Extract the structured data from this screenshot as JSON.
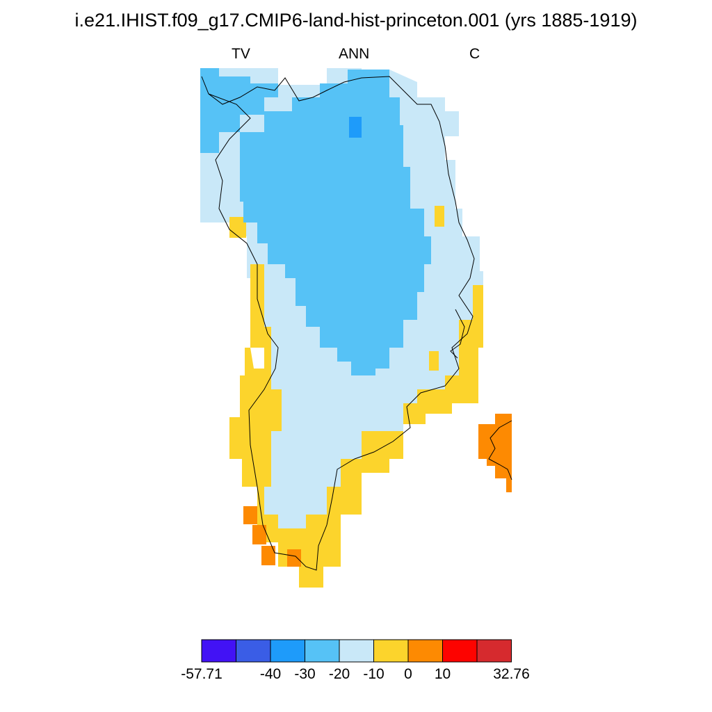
{
  "title": "i.e21.IHIST.f09_g17.CMIP6-land-hist-princeton.001 (yrs 1885-1919)",
  "subtitle": {
    "left": "TV",
    "center": "ANN",
    "right": "C"
  },
  "colorbar": {
    "colors": [
      "#4212f5",
      "#3a5de6",
      "#1e9bfa",
      "#56c2f6",
      "#c9e8f8",
      "#fcd42c",
      "#fd8a02",
      "#fd0300",
      "#d62a2e"
    ],
    "labels": [
      "-57.71",
      "-40",
      "-30",
      "-20",
      "-10",
      "0",
      "10",
      "32.76"
    ]
  },
  "map": {
    "region": "Greenland",
    "levels": {
      "blue": "#1e9bfa",
      "lightblue": "#56c2f6",
      "paleblue": "#c9e8f8",
      "yellow": "#fcd42c",
      "orange": "#fd8a02"
    }
  }
}
